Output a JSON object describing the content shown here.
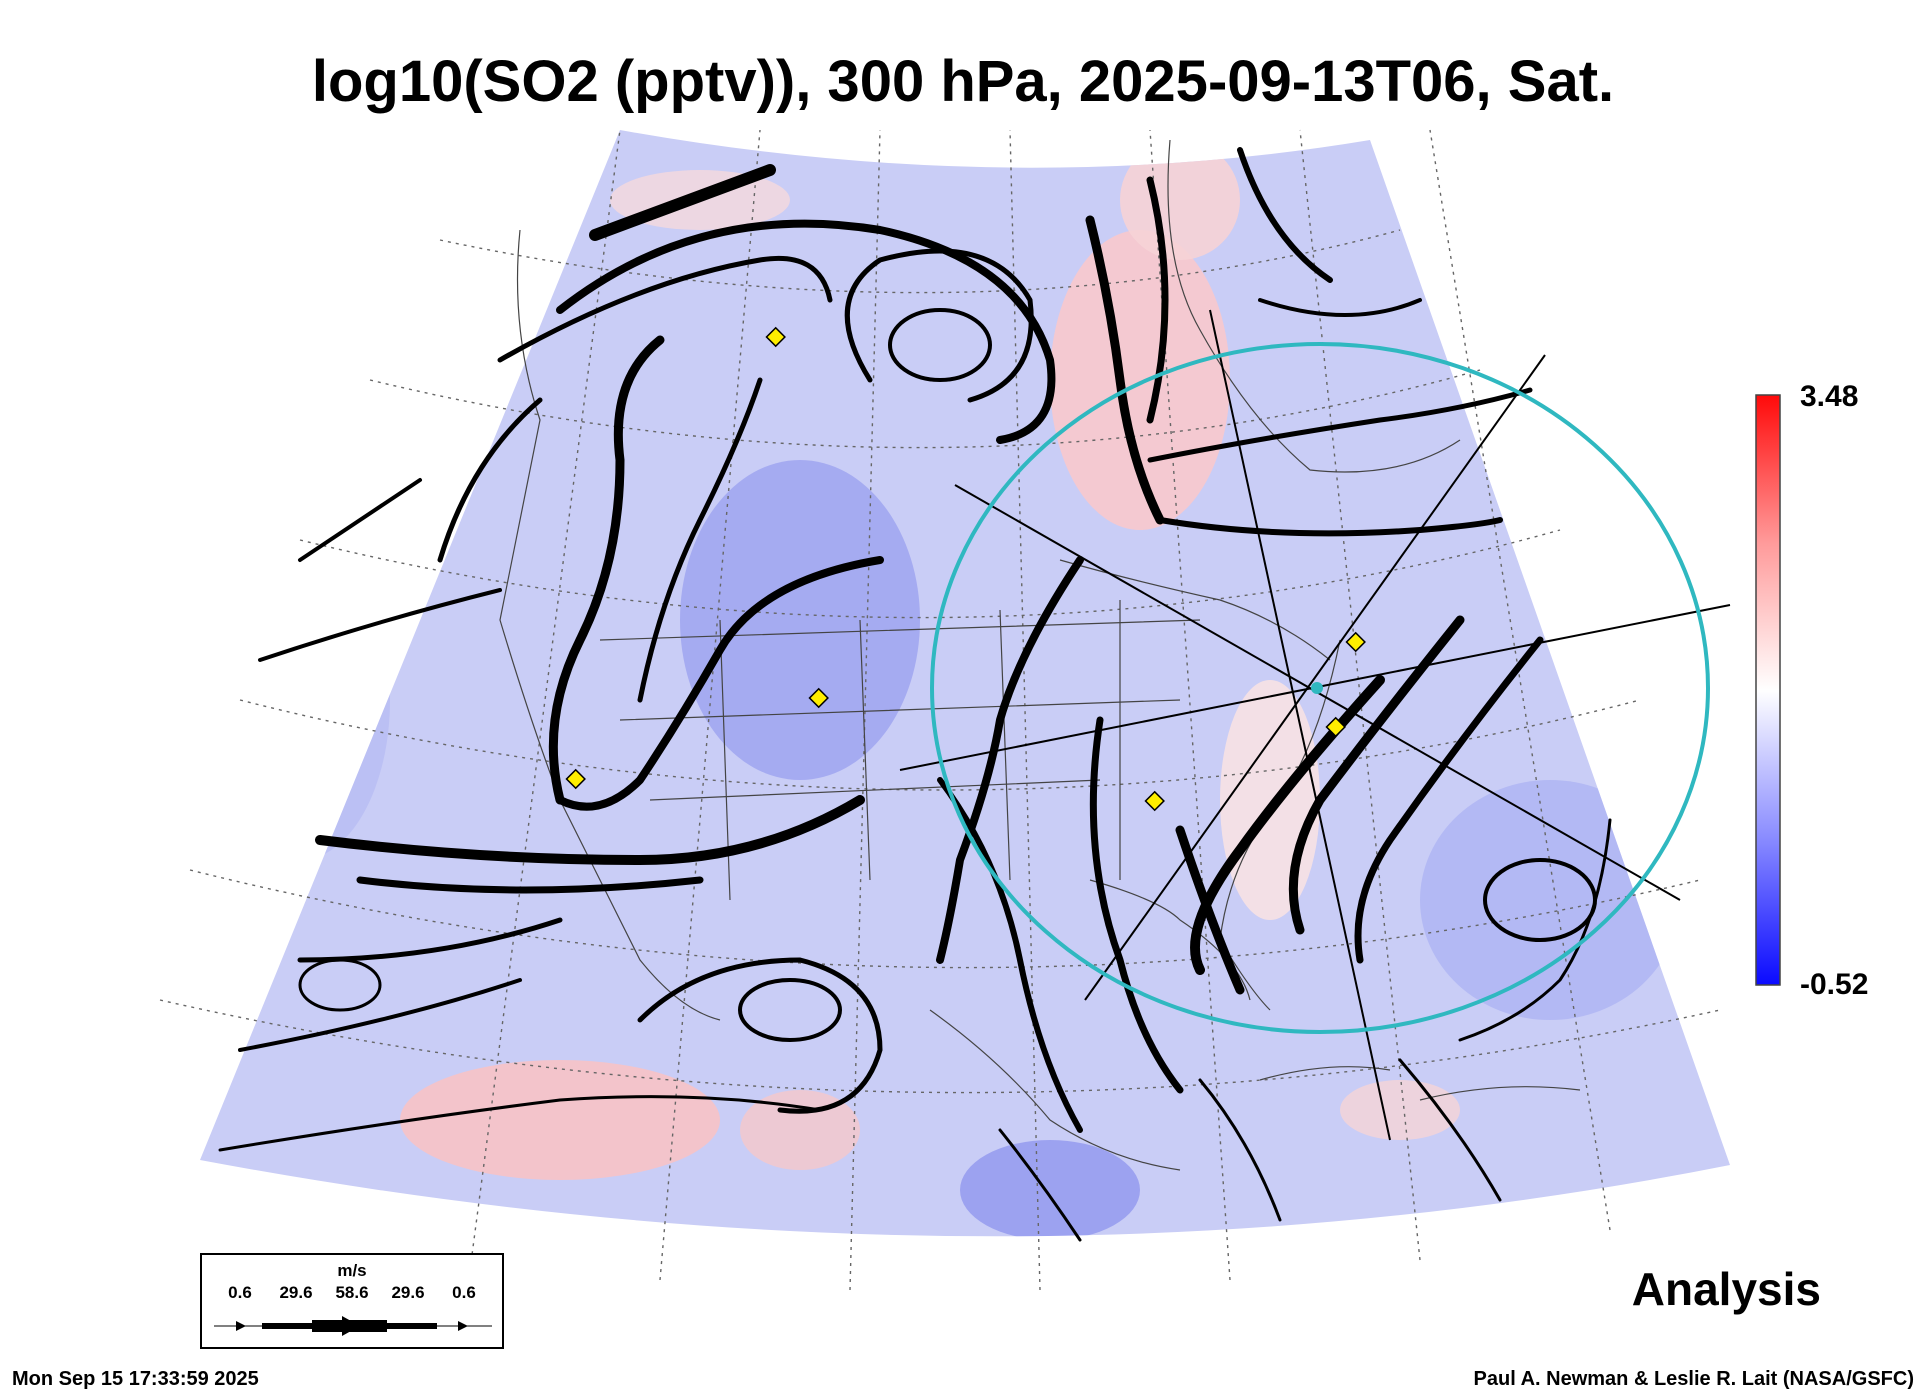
{
  "title": "log10(SO2 (pptv)), 300 hPa, 2025-09-13T06, Sat.",
  "colorbar": {
    "max_label": "3.48",
    "min_label": "-0.52",
    "low_color": "#1a1aff",
    "mid_color": "#ffffff",
    "high_color": "#ff1a1a"
  },
  "wind_legend": {
    "unit": "m/s",
    "values": [
      "0.6",
      "29.6",
      "58.6",
      "29.6",
      "0.6"
    ]
  },
  "analysis_label": "Analysis",
  "footer": {
    "timestamp": "Mon Sep 15 17:33:59 2025",
    "credit": "Paul A. Newman & Leslie R. Lait (NASA/GSFC)"
  },
  "colors": {
    "map_field": "#c9cdf6",
    "circle": "#2fb8c0",
    "marker": "#ffee00"
  }
}
